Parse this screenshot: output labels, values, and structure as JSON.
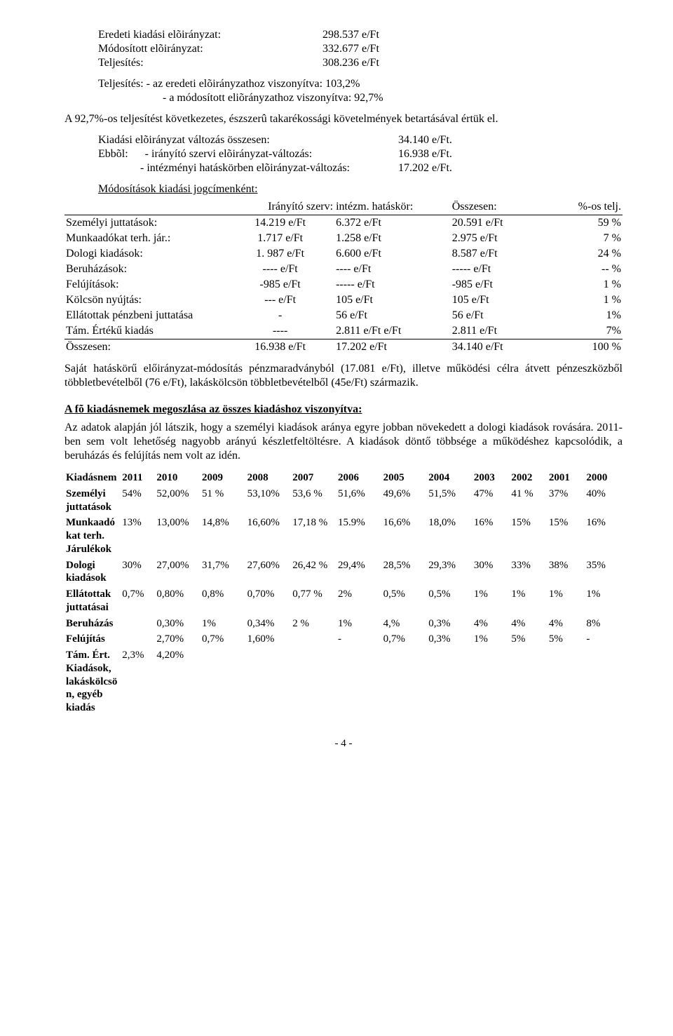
{
  "top": {
    "rows": [
      {
        "label": "Eredeti kiadási elõirányzat:",
        "value": "298.537 e/Ft"
      },
      {
        "label": "Módosított elõirányzat:",
        "value": "332.677 e/Ft"
      },
      {
        "label": "Teljesítés:",
        "value": "308.236 e/Ft"
      }
    ],
    "telj_lines": [
      "Teljesítés: - az eredeti elõirányzathoz viszonyítva:   103,2%",
      "- a módosított eliõrányzathoz viszonyítva:  92,7%"
    ],
    "par1": "A 92,7%-os teljesítést következetes, észszerû takarékossági követelmények betartásával értük el.",
    "kv_lines": [
      {
        "label": "Kiadási elõirányzat változás összesen:",
        "value": "34.140 e/Ft."
      },
      {
        "label": "Ebbõl:      - irányító szervi elõirányzat-változás:",
        "value": "16.938 e/Ft."
      },
      {
        "label": "               - intézményi hatáskörben elõirányzat-változás:",
        "value": "17.202 e/Ft."
      }
    ],
    "mod_title": "Módosítások kiadási jogcímenként:"
  },
  "table1": {
    "headers": [
      "",
      "Irányító szerv:",
      "intézm. hatáskör:",
      "Összesen:",
      "%-os telj."
    ],
    "rows": [
      [
        "Személyi juttatások:",
        "14.219 e/Ft",
        "6.372 e/Ft",
        "20.591 e/Ft",
        "59 %"
      ],
      [
        "Munkaadókat terh. jár.:",
        "1.717 e/Ft",
        "1.258 e/Ft",
        "2.975 e/Ft",
        "7 %"
      ],
      [
        "Dologi kiadások:",
        "1. 987 e/Ft",
        "6.600 e/Ft",
        "8.587 e/Ft",
        "24 %"
      ],
      [
        "Beruházások:",
        "---- e/Ft",
        "---- e/Ft",
        "----- e/Ft",
        "-- %"
      ],
      [
        "Felújítások:",
        "-985 e/Ft",
        "----- e/Ft",
        "-985 e/Ft",
        "1 %"
      ],
      [
        "Kölcsön nyújtás:",
        "--- e/Ft",
        "105  e/Ft",
        "105 e/Ft",
        "1 %"
      ],
      [
        "Ellátottak pénzbeni juttatása",
        "-",
        "56 e/Ft",
        "56 e/Ft",
        "1%"
      ],
      [
        "Tám. Értékű kiadás",
        "----",
        "2.811 e/Ft e/Ft",
        "2.811 e/Ft",
        "7%"
      ]
    ],
    "sum": [
      "Összesen:",
      "16.938 e/Ft",
      "17.202 e/Ft",
      "34.140 e/Ft",
      "100 %"
    ]
  },
  "par_after_t1": "Saját hatáskörű előirányzat-módosítás pénzmaradványból (17.081 e/Ft), illetve  működési célra átvett pénzeszközből többletbevételből (76 e/Ft), lakáskölcsön többletbevételből (45e/Ft) származik.",
  "section2": {
    "title": "A fõ kiadásnemek megoszlása az összes kiadáshoz viszonyítva:",
    "par": "Az adatok alapján jól látszik, hogy a személyi kiadások aránya egyre jobban növekedett a dologi kiadások rovására. 2011-ben  sem  volt lehetőség nagyobb arányú készletfeltöltésre. A kiadások döntő többsége a működéshez kapcsolódik, a beruházás és felújítás nem volt az idén."
  },
  "table2": {
    "years": [
      "2011",
      "2010",
      "2009",
      "2008",
      "2007",
      "2006",
      "2005",
      "2004",
      "2003",
      "2002",
      "2001",
      "2000"
    ],
    "rows": [
      {
        "label": "Kiadásnem",
        "cells": [
          "2011",
          "2010",
          "2009",
          "2008",
          "2007",
          "2006",
          "2005",
          "2004",
          "2003",
          "2002",
          "2001",
          "2000"
        ],
        "is_header": true
      },
      {
        "label": "Személyi juttatások",
        "cells": [
          "54%",
          "52,00%",
          "51 %",
          "53,10%",
          "53,6 %",
          "51,6%",
          "49,6%",
          "51,5%",
          "47%",
          "41 %",
          "37%",
          "40%"
        ]
      },
      {
        "label": "Munkaadókat terh. Járulékok",
        "cells": [
          "13%",
          "13,00%",
          "14,8%",
          "16,60%",
          "17,18 %",
          "15.9%",
          "16,6%",
          "18,0%",
          "16%",
          "15%",
          "15%",
          "16%"
        ]
      },
      {
        "label": "Dologi kiadások",
        "cells": [
          "30%",
          "27,00%",
          "31,7%",
          "27,60%",
          "26,42 %",
          "29,4%",
          "28,5%",
          "29,3%",
          "30%",
          "33%",
          "38%",
          "35%"
        ]
      },
      {
        "label": "Ellátottak juttatásai",
        "cells": [
          "0,7%",
          "0,80%",
          "0,8%",
          "0,70%",
          "0,77 %",
          "2%",
          "0,5%",
          "0,5%",
          "1%",
          "1%",
          "1%",
          "1%"
        ]
      },
      {
        "label": "Beruházás",
        "cells": [
          "",
          "0,30%",
          "1%",
          "0,34%",
          "2 %",
          "1%",
          "4,%",
          "0,3%",
          "4%",
          "4%",
          "4%",
          "8%"
        ]
      },
      {
        "label": "Felújítás",
        "cells": [
          "",
          "2,70%",
          "0,7%",
          "1,60%",
          "",
          "-",
          "0,7%",
          "0,3%",
          "1%",
          "5%",
          "5%",
          "-"
        ]
      },
      {
        "label": "Tám. Ért. Kiadások, lakáskölcsön, egyéb kiadás",
        "cells": [
          "2,3%",
          "4,20%",
          "",
          "",
          "",
          "",
          "",
          "",
          "",
          "",
          "",
          ""
        ]
      }
    ]
  },
  "footer": "- 4 -"
}
